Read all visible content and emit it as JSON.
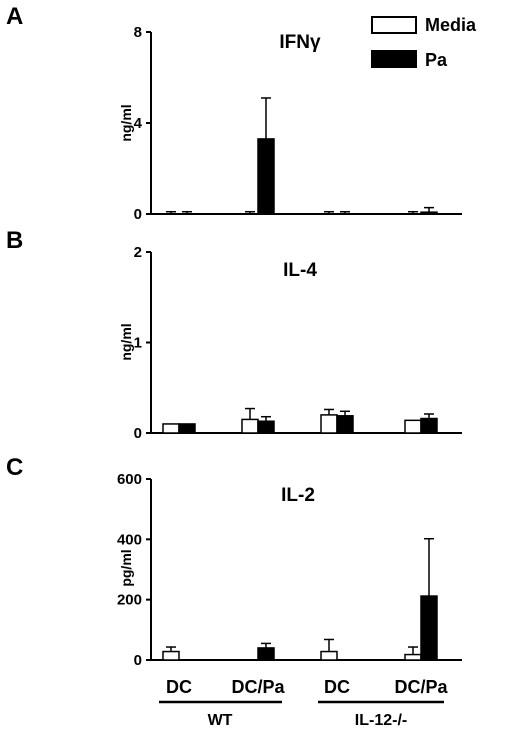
{
  "chart_data": [
    {
      "type": "bar",
      "panel": "A",
      "title": "IFNγ",
      "xlabel": "",
      "ylabel": "ng/ml",
      "ylim": [
        0,
        8
      ],
      "yticks": [
        "0",
        "4",
        "8"
      ],
      "yticks_values": [
        0,
        4,
        8
      ],
      "categories": [
        "WT DC",
        "WT DC/Pa",
        "IL-12-/- DC",
        "IL-12-/- DC/Pa"
      ],
      "series": [
        {
          "name": "Media",
          "values": [
            0.0,
            0.0,
            0.0,
            0.0
          ],
          "errors": [
            0.1,
            0.1,
            0.1,
            0.1
          ]
        },
        {
          "name": "Pa",
          "values": [
            0.0,
            3.3,
            0.0,
            0.08
          ],
          "errors": [
            0.1,
            1.8,
            0.1,
            0.2
          ]
        }
      ],
      "legend": {
        "placement": "top-right",
        "entries": [
          "Media",
          "Pa"
        ]
      }
    },
    {
      "type": "bar",
      "panel": "B",
      "title": "IL-4",
      "xlabel": "",
      "ylabel": "ng/ml",
      "ylim": [
        0,
        2
      ],
      "yticks": [
        "0",
        "1",
        "2"
      ],
      "yticks_values": [
        0,
        1,
        2
      ],
      "categories": [
        "WT DC",
        "WT DC/Pa",
        "IL-12-/- DC",
        "IL-12-/- DC/Pa"
      ],
      "series": [
        {
          "name": "Media",
          "values": [
            0.1,
            0.15,
            0.2,
            0.14
          ],
          "errors": [
            0.0,
            0.12,
            0.06,
            0.0
          ]
        },
        {
          "name": "Pa",
          "values": [
            0.1,
            0.13,
            0.19,
            0.16
          ],
          "errors": [
            0.0,
            0.05,
            0.05,
            0.05
          ]
        }
      ]
    },
    {
      "type": "bar",
      "panel": "C",
      "title": "IL-2",
      "xlabel": "",
      "ylabel": "pg/ml",
      "ylim": [
        0,
        600
      ],
      "yticks": [
        "0",
        "200",
        "400",
        "600"
      ],
      "yticks_values": [
        0,
        200,
        400,
        600
      ],
      "categories": [
        "WT DC",
        "WT DC/Pa",
        "IL-12-/- DC",
        "IL-12-/- DC/Pa"
      ],
      "series": [
        {
          "name": "Media",
          "values": [
            28,
            0,
            28,
            18
          ],
          "errors": [
            15,
            0,
            40,
            25
          ]
        },
        {
          "name": "Pa",
          "values": [
            0,
            40,
            0,
            212
          ],
          "errors": [
            0,
            15,
            0,
            190
          ]
        }
      ]
    }
  ],
  "x_axis": {
    "labels": [
      "DC",
      "DC/Pa",
      "DC",
      "DC/Pa"
    ],
    "groups": [
      "WT",
      "IL-12-/-"
    ]
  },
  "colors": {
    "media": "#ffffff",
    "pa": "#000000",
    "stroke": "#000000"
  }
}
